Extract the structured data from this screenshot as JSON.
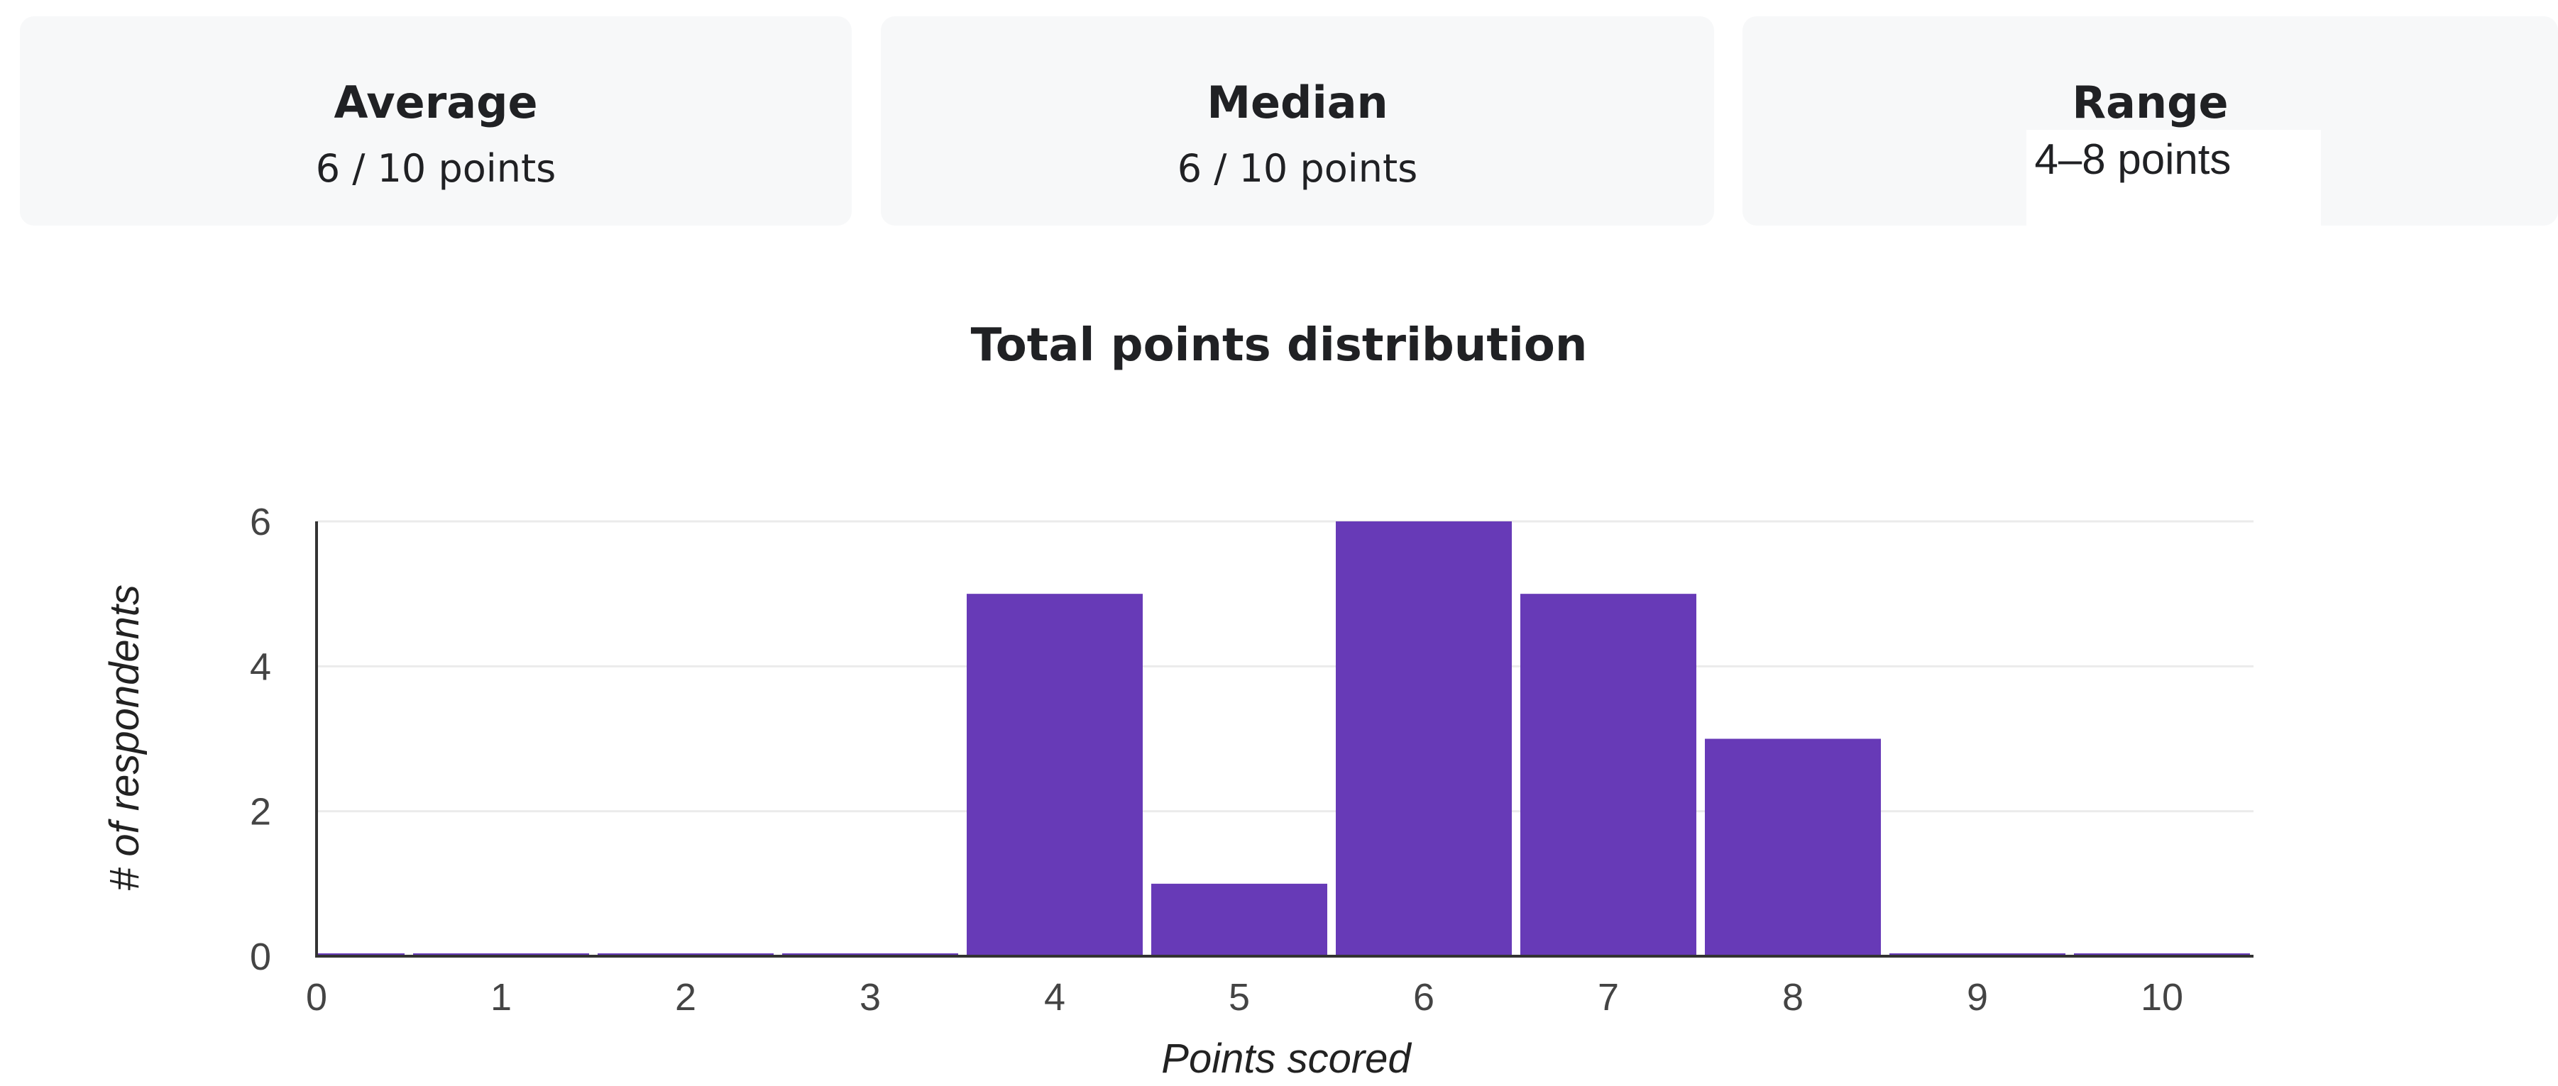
{
  "stats": {
    "average": {
      "label": "Average",
      "value": "6 / 10 points"
    },
    "median": {
      "label": "Median",
      "value": "6 / 10 points"
    },
    "range": {
      "label": "Range",
      "value": "4–8 points"
    }
  },
  "colors": {
    "bar": "#673ab7",
    "card": "#f7f8f9",
    "grid": "#ebebeb",
    "axis": "#333333"
  },
  "chart_data": {
    "type": "bar",
    "title": "Total points distribution",
    "xlabel": "Points scored",
    "ylabel": "# of respondents",
    "categories": [
      "0",
      "1",
      "2",
      "3",
      "4",
      "5",
      "6",
      "7",
      "8",
      "9",
      "10"
    ],
    "values": [
      0,
      0,
      0,
      0,
      5,
      1,
      6,
      5,
      3,
      0,
      0
    ],
    "yticks": [
      "0",
      "2",
      "4",
      "6"
    ],
    "ylim": [
      0,
      6
    ],
    "grid": true,
    "legend": "none"
  }
}
